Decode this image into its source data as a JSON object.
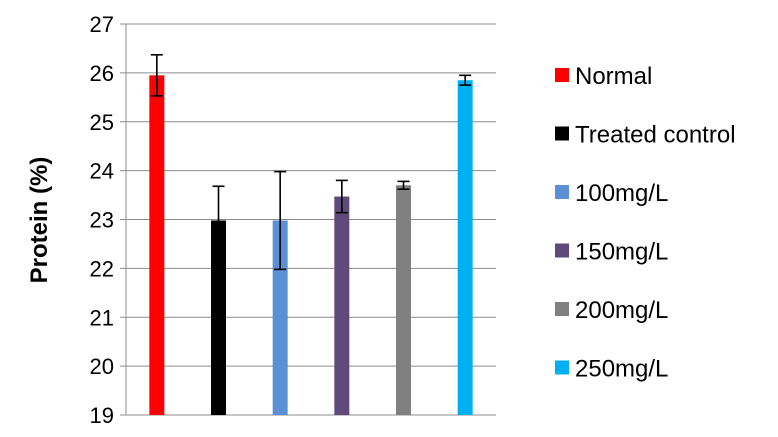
{
  "chart_data": {
    "type": "bar",
    "title": "",
    "xlabel": "",
    "ylabel": "Protein (%)",
    "ylim": [
      19,
      27
    ],
    "yticks": [
      "19",
      "20",
      "21",
      "22",
      "23",
      "24",
      "25",
      "26",
      "27"
    ],
    "grid": true,
    "legend_position": "right",
    "series": [
      {
        "name": "Normal",
        "value": 25.95,
        "error": 0.42,
        "color": "#ff0000"
      },
      {
        "name": "Treated control",
        "value": 22.98,
        "error": 0.7,
        "color": "#000000"
      },
      {
        "name": "100mg/L",
        "value": 22.98,
        "error": 1.0,
        "color": "#5b8fd6"
      },
      {
        "name": "150mg/L",
        "value": 23.47,
        "error": 0.33,
        "color": "#604a7b"
      },
      {
        "name": "200mg/L",
        "value": 23.7,
        "error": 0.08,
        "color": "#808080"
      },
      {
        "name": "250mg/L",
        "value": 25.85,
        "error": 0.1,
        "color": "#00b0f0"
      }
    ]
  }
}
